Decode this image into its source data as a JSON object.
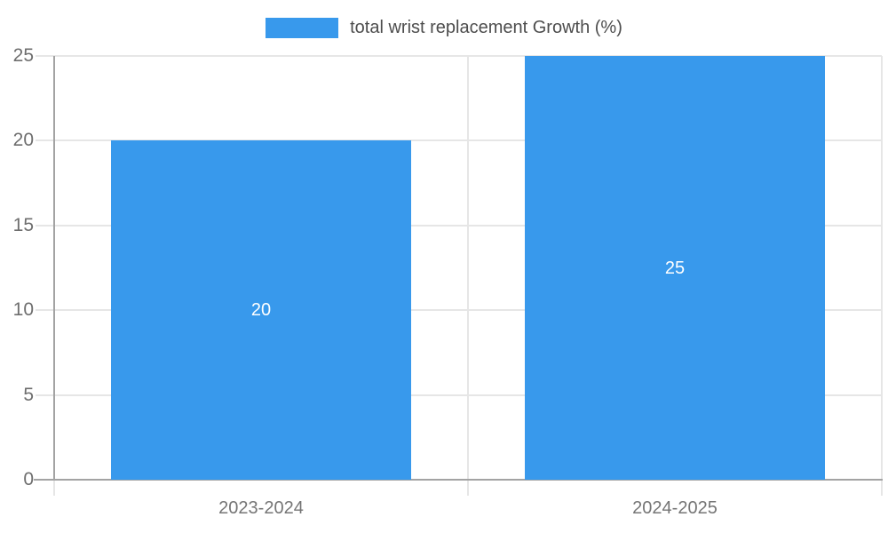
{
  "legend": {
    "label": "total wrist replacement Growth (%)"
  },
  "chart_data": {
    "type": "bar",
    "title": "",
    "xlabel": "",
    "ylabel": "",
    "categories": [
      "2023-2024",
      "2024-2025"
    ],
    "series": [
      {
        "name": "total wrist replacement Growth (%)",
        "values": [
          20,
          25
        ]
      }
    ],
    "value_labels": [
      "20",
      "25"
    ],
    "ylim": [
      0,
      25
    ],
    "yticks": [
      0,
      5,
      10,
      15,
      20,
      25
    ],
    "grid": true,
    "legend_position": "top",
    "colors": {
      "bar": "#3899ec",
      "grid": "#e6e6e6",
      "axis": "#a3a3a3",
      "ytick_text": "#6e6e6e",
      "xtick_text": "#757575",
      "legend_text": "#4d4d4d",
      "value_label_text": "#ffffff",
      "background": "#ffffff"
    }
  }
}
